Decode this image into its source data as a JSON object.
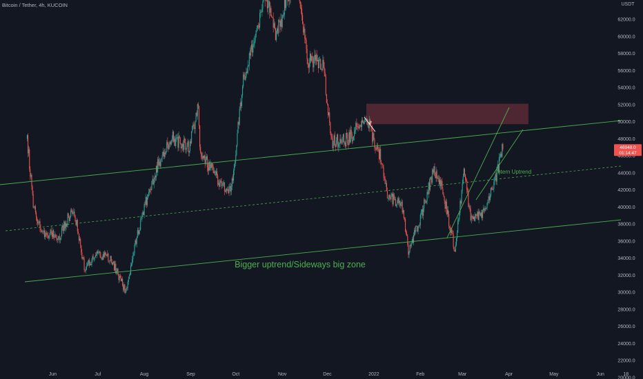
{
  "header": {
    "symbol_title": "Bitcoin / Tether, 4h, KUCOIN",
    "currency": "USDT"
  },
  "colors": {
    "background": "#131722",
    "up": "#26a69a",
    "down": "#ef5350",
    "trendline": "#4caf50",
    "zone_fill": "#5b2a35",
    "axis_text": "#b2b5be",
    "price_tag": "#ef5350"
  },
  "chart_data": {
    "type": "candlestick",
    "x_ticks": [
      "Jun",
      "Jul",
      "Aug",
      "Sep",
      "Oct",
      "Nov",
      "Dec",
      "2022",
      "Feb",
      "Mar",
      "Apr",
      "May",
      "Jun",
      "18"
    ],
    "y_ticks": [
      62000.0,
      60000.0,
      58000.0,
      56000.0,
      54000.0,
      52000.0,
      50000.0,
      48000.0,
      46000.0,
      44000.0,
      42000.0,
      40000.0,
      38000.0,
      36000.0,
      34000.0,
      32000.0,
      30000.0,
      28000.0,
      26000.0,
      24000.0,
      22000.0,
      20000.0
    ],
    "ylim": [
      19200,
      63500
    ],
    "last_price": "46948.0",
    "last_price_countdown": "01:14:47",
    "price_path": [
      [
        "2021-05-15",
        48000
      ],
      [
        "2021-05-19",
        40000
      ],
      [
        "2021-05-25",
        37000
      ],
      [
        "2021-06-05",
        36500
      ],
      [
        "2021-06-15",
        40000
      ],
      [
        "2021-06-22",
        33000
      ],
      [
        "2021-07-01",
        34500
      ],
      [
        "2021-07-10",
        33800
      ],
      [
        "2021-07-20",
        30000
      ],
      [
        "2021-07-25",
        35000
      ],
      [
        "2021-08-01",
        40000
      ],
      [
        "2021-08-10",
        45000
      ],
      [
        "2021-08-20",
        48000
      ],
      [
        "2021-08-31",
        47000
      ],
      [
        "2021-09-06",
        52000
      ],
      [
        "2021-09-07",
        46500
      ],
      [
        "2021-09-20",
        43000
      ],
      [
        "2021-09-28",
        42000
      ],
      [
        "2021-10-06",
        55000
      ],
      [
        "2021-10-15",
        60000
      ],
      [
        "2021-10-20",
        65000
      ],
      [
        "2021-10-28",
        60000
      ],
      [
        "2021-11-10",
        68000
      ],
      [
        "2021-11-18",
        57000
      ],
      [
        "2021-11-28",
        57000
      ],
      [
        "2021-12-04",
        47500
      ],
      [
        "2021-12-15",
        48000
      ],
      [
        "2021-12-27",
        50500
      ],
      [
        "2022-01-05",
        46000
      ],
      [
        "2022-01-10",
        41500
      ],
      [
        "2022-01-20",
        40000
      ],
      [
        "2022-01-24",
        35000
      ],
      [
        "2022-02-01",
        38500
      ],
      [
        "2022-02-10",
        44500
      ],
      [
        "2022-02-15",
        42500
      ],
      [
        "2022-02-24",
        35000
      ],
      [
        "2022-03-02",
        44000
      ],
      [
        "2022-03-07",
        38500
      ],
      [
        "2022-03-15",
        39500
      ],
      [
        "2022-03-22",
        42500
      ],
      [
        "2022-03-28",
        47000
      ]
    ],
    "zones": [
      {
        "from_date": "2021-12-27",
        "to_date": "2022-04-14",
        "low": 49700,
        "high": 52100
      }
    ],
    "annotations": [
      {
        "text": "Bigger uptrend/Sideways big zone"
      },
      {
        "text": "Intern Uptrend"
      },
      {
        "text": "5"
      }
    ]
  }
}
